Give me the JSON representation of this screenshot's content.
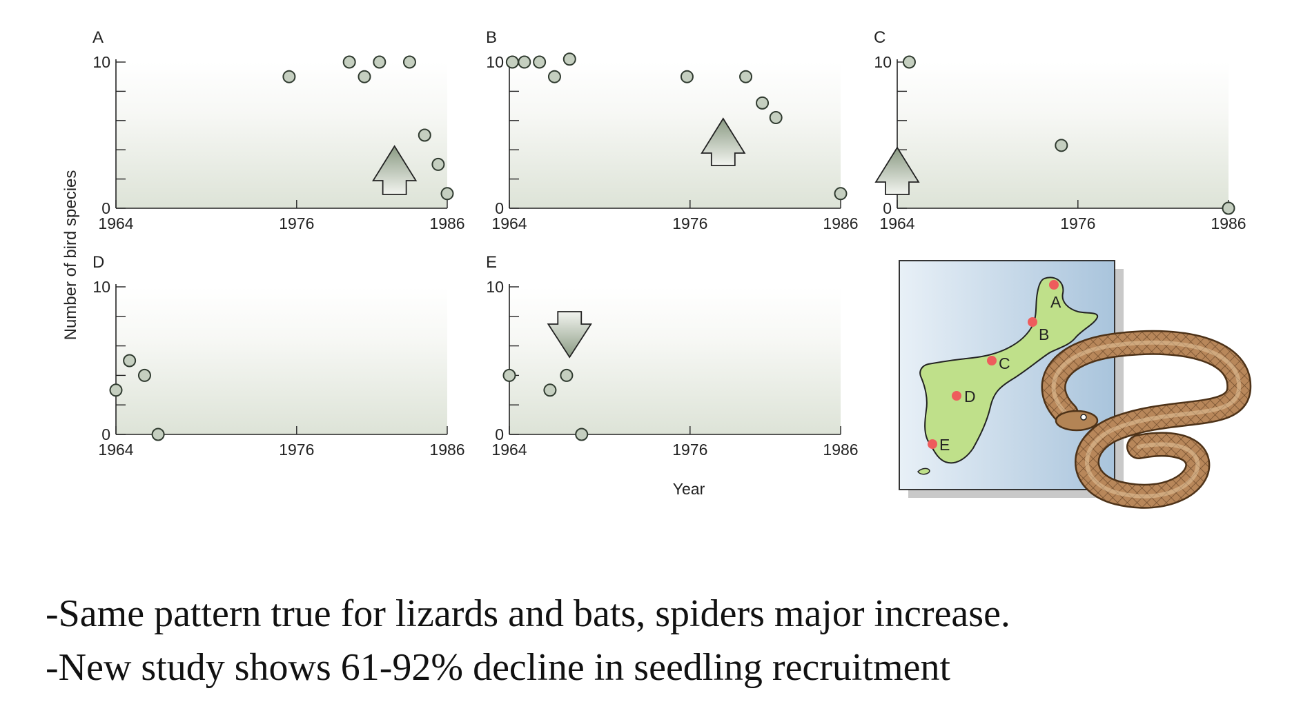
{
  "figure": {
    "ylabel": "Number of bird species",
    "xlabel": "Year",
    "colors": {
      "point_fill": "#c5cfc0",
      "point_stroke": "#2f3a2f",
      "panel_bg_bottom": "#dde3d7",
      "arrow_fill": "#9fae98",
      "map_water": "#bcd2e4",
      "island": "#bfe08a",
      "site_dot": "#ee5c5c",
      "snake": "#b38455"
    }
  },
  "chart_data": [
    {
      "type": "scatter",
      "panel": "A",
      "xlim": [
        1964,
        1986
      ],
      "ylim": [
        0,
        10
      ],
      "x_ticks": [
        "1964",
        "1976",
        "1986"
      ],
      "y_ticks": [
        "0",
        "10"
      ],
      "x": [
        1975.5,
        1979.5,
        1980.5,
        1981.5,
        1983.5,
        1984.5,
        1985.4,
        1986
      ],
      "y": [
        9,
        10,
        9,
        10,
        10,
        5,
        3,
        1
      ],
      "arrow": {
        "direction": "up",
        "year": 1982.5
      }
    },
    {
      "type": "scatter",
      "panel": "B",
      "xlim": [
        1964,
        1986
      ],
      "ylim": [
        0,
        10
      ],
      "x_ticks": [
        "1964",
        "1976",
        "1986"
      ],
      "y_ticks": [
        "0",
        "10"
      ],
      "x": [
        1964.2,
        1965,
        1966,
        1967,
        1968,
        1975.8,
        1979.7,
        1980.8,
        1981.7,
        1986
      ],
      "y": [
        10,
        10,
        10,
        9,
        10.2,
        9,
        9,
        7.2,
        6.2,
        1
      ],
      "arrow": {
        "direction": "up",
        "year": 1978.2
      }
    },
    {
      "type": "scatter",
      "panel": "C",
      "xlim": [
        1964,
        1986
      ],
      "ylim": [
        0,
        10
      ],
      "x_ticks": [
        "1964",
        "1976",
        "1986"
      ],
      "y_ticks": [
        "0",
        "10"
      ],
      "x": [
        1964.8,
        1974.9,
        1986
      ],
      "y": [
        10,
        4.3,
        0
      ],
      "arrow": {
        "direction": "up",
        "year": 1964
      }
    },
    {
      "type": "scatter",
      "panel": "D",
      "xlim": [
        1964,
        1986
      ],
      "ylim": [
        0,
        10
      ],
      "x_ticks": [
        "1964",
        "1976",
        "1986"
      ],
      "y_ticks": [
        "0",
        "10"
      ],
      "x": [
        1964,
        1964.9,
        1965.9,
        1966.8
      ],
      "y": [
        3,
        5,
        4,
        0
      ],
      "arrow": null
    },
    {
      "type": "scatter",
      "panel": "E",
      "xlim": [
        1964,
        1986
      ],
      "ylim": [
        0,
        10
      ],
      "x_ticks": [
        "1964",
        "1976",
        "1986"
      ],
      "y_ticks": [
        "0",
        "10"
      ],
      "x": [
        1964,
        1966.7,
        1967.8,
        1968.8
      ],
      "y": [
        4,
        3,
        4,
        0
      ],
      "arrow": {
        "direction": "down",
        "year": 1968
      }
    }
  ],
  "map": {
    "sites": [
      "A",
      "B",
      "C",
      "D",
      "E"
    ]
  },
  "caption": {
    "line1": "-Same pattern true for lizards and bats, spiders major increase.",
    "line2": "-New study shows 61-92% decline in seedling recruitment"
  }
}
